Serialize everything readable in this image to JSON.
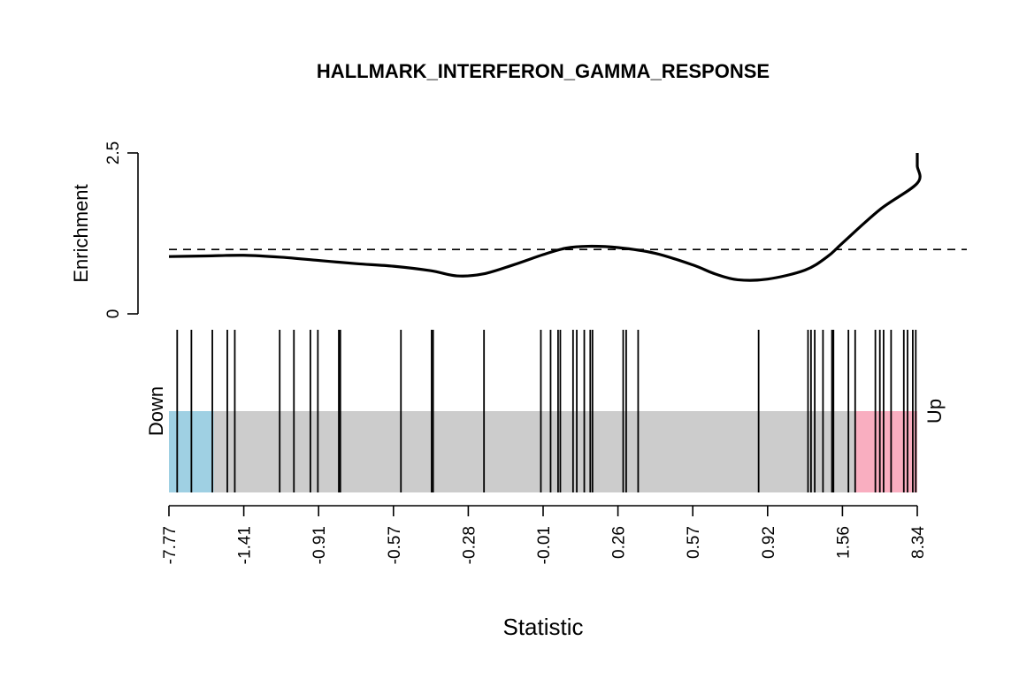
{
  "chart_data": {
    "type": "barcode",
    "title": "HALLMARK_INTERFERON_GAMMA_RESPONSE",
    "enrichment": {
      "ylabel": "Enrichment",
      "ylim": [
        0,
        2.5
      ],
      "y_ticks": [
        "0",
        "2.5"
      ],
      "reference_line": 1,
      "curve": [
        {
          "x": 0.0,
          "y": 0.89
        },
        {
          "x": 0.05,
          "y": 0.9
        },
        {
          "x": 0.1,
          "y": 0.91
        },
        {
          "x": 0.15,
          "y": 0.88
        },
        {
          "x": 0.2,
          "y": 0.83
        },
        {
          "x": 0.25,
          "y": 0.78
        },
        {
          "x": 0.3,
          "y": 0.74
        },
        {
          "x": 0.35,
          "y": 0.67
        },
        {
          "x": 0.385,
          "y": 0.59
        },
        {
          "x": 0.42,
          "y": 0.62
        },
        {
          "x": 0.46,
          "y": 0.76
        },
        {
          "x": 0.5,
          "y": 0.92
        },
        {
          "x": 0.53,
          "y": 1.02
        },
        {
          "x": 0.56,
          "y": 1.05
        },
        {
          "x": 0.6,
          "y": 1.03
        },
        {
          "x": 0.65,
          "y": 0.94
        },
        {
          "x": 0.7,
          "y": 0.76
        },
        {
          "x": 0.73,
          "y": 0.62
        },
        {
          "x": 0.76,
          "y": 0.53
        },
        {
          "x": 0.8,
          "y": 0.54
        },
        {
          "x": 0.85,
          "y": 0.68
        },
        {
          "x": 0.88,
          "y": 0.89
        },
        {
          "x": 0.9,
          "y": 1.1
        },
        {
          "x": 0.95,
          "y": 1.62
        },
        {
          "x": 1.0,
          "y": 2.03
        },
        {
          "x": 1.05,
          "y": 2.3
        },
        {
          "x": 1.0,
          "y": 2.5
        }
      ]
    },
    "barcode": {
      "down_label": "Down",
      "up_label": "Up",
      "down_fraction": 0.06,
      "up_fraction": 0.083,
      "colors": {
        "down": "#9fd0e3",
        "up": "#f9aec0",
        "middle": "#cccccc"
      },
      "gene_positions": [
        0.011,
        0.03,
        0.058,
        0.078,
        0.088,
        0.148,
        0.167,
        0.189,
        0.199,
        0.227,
        0.229,
        0.31,
        0.351,
        0.353,
        0.421,
        0.497,
        0.51,
        0.52,
        0.523,
        0.54,
        0.545,
        0.555,
        0.563,
        0.566,
        0.607,
        0.611,
        0.627,
        0.788,
        0.854,
        0.858,
        0.863,
        0.874,
        0.886,
        0.888,
        0.908,
        0.917,
        0.944,
        0.95,
        0.955,
        0.965,
        0.982,
        0.987,
        0.994,
        0.998
      ]
    },
    "x_axis": {
      "label": "Statistic",
      "tick_labels": [
        "-7.77",
        "-1.41",
        "-0.91",
        "-0.57",
        "-0.28",
        "-0.01",
        "0.26",
        "0.57",
        "0.92",
        "1.56",
        "8.34"
      ]
    }
  }
}
